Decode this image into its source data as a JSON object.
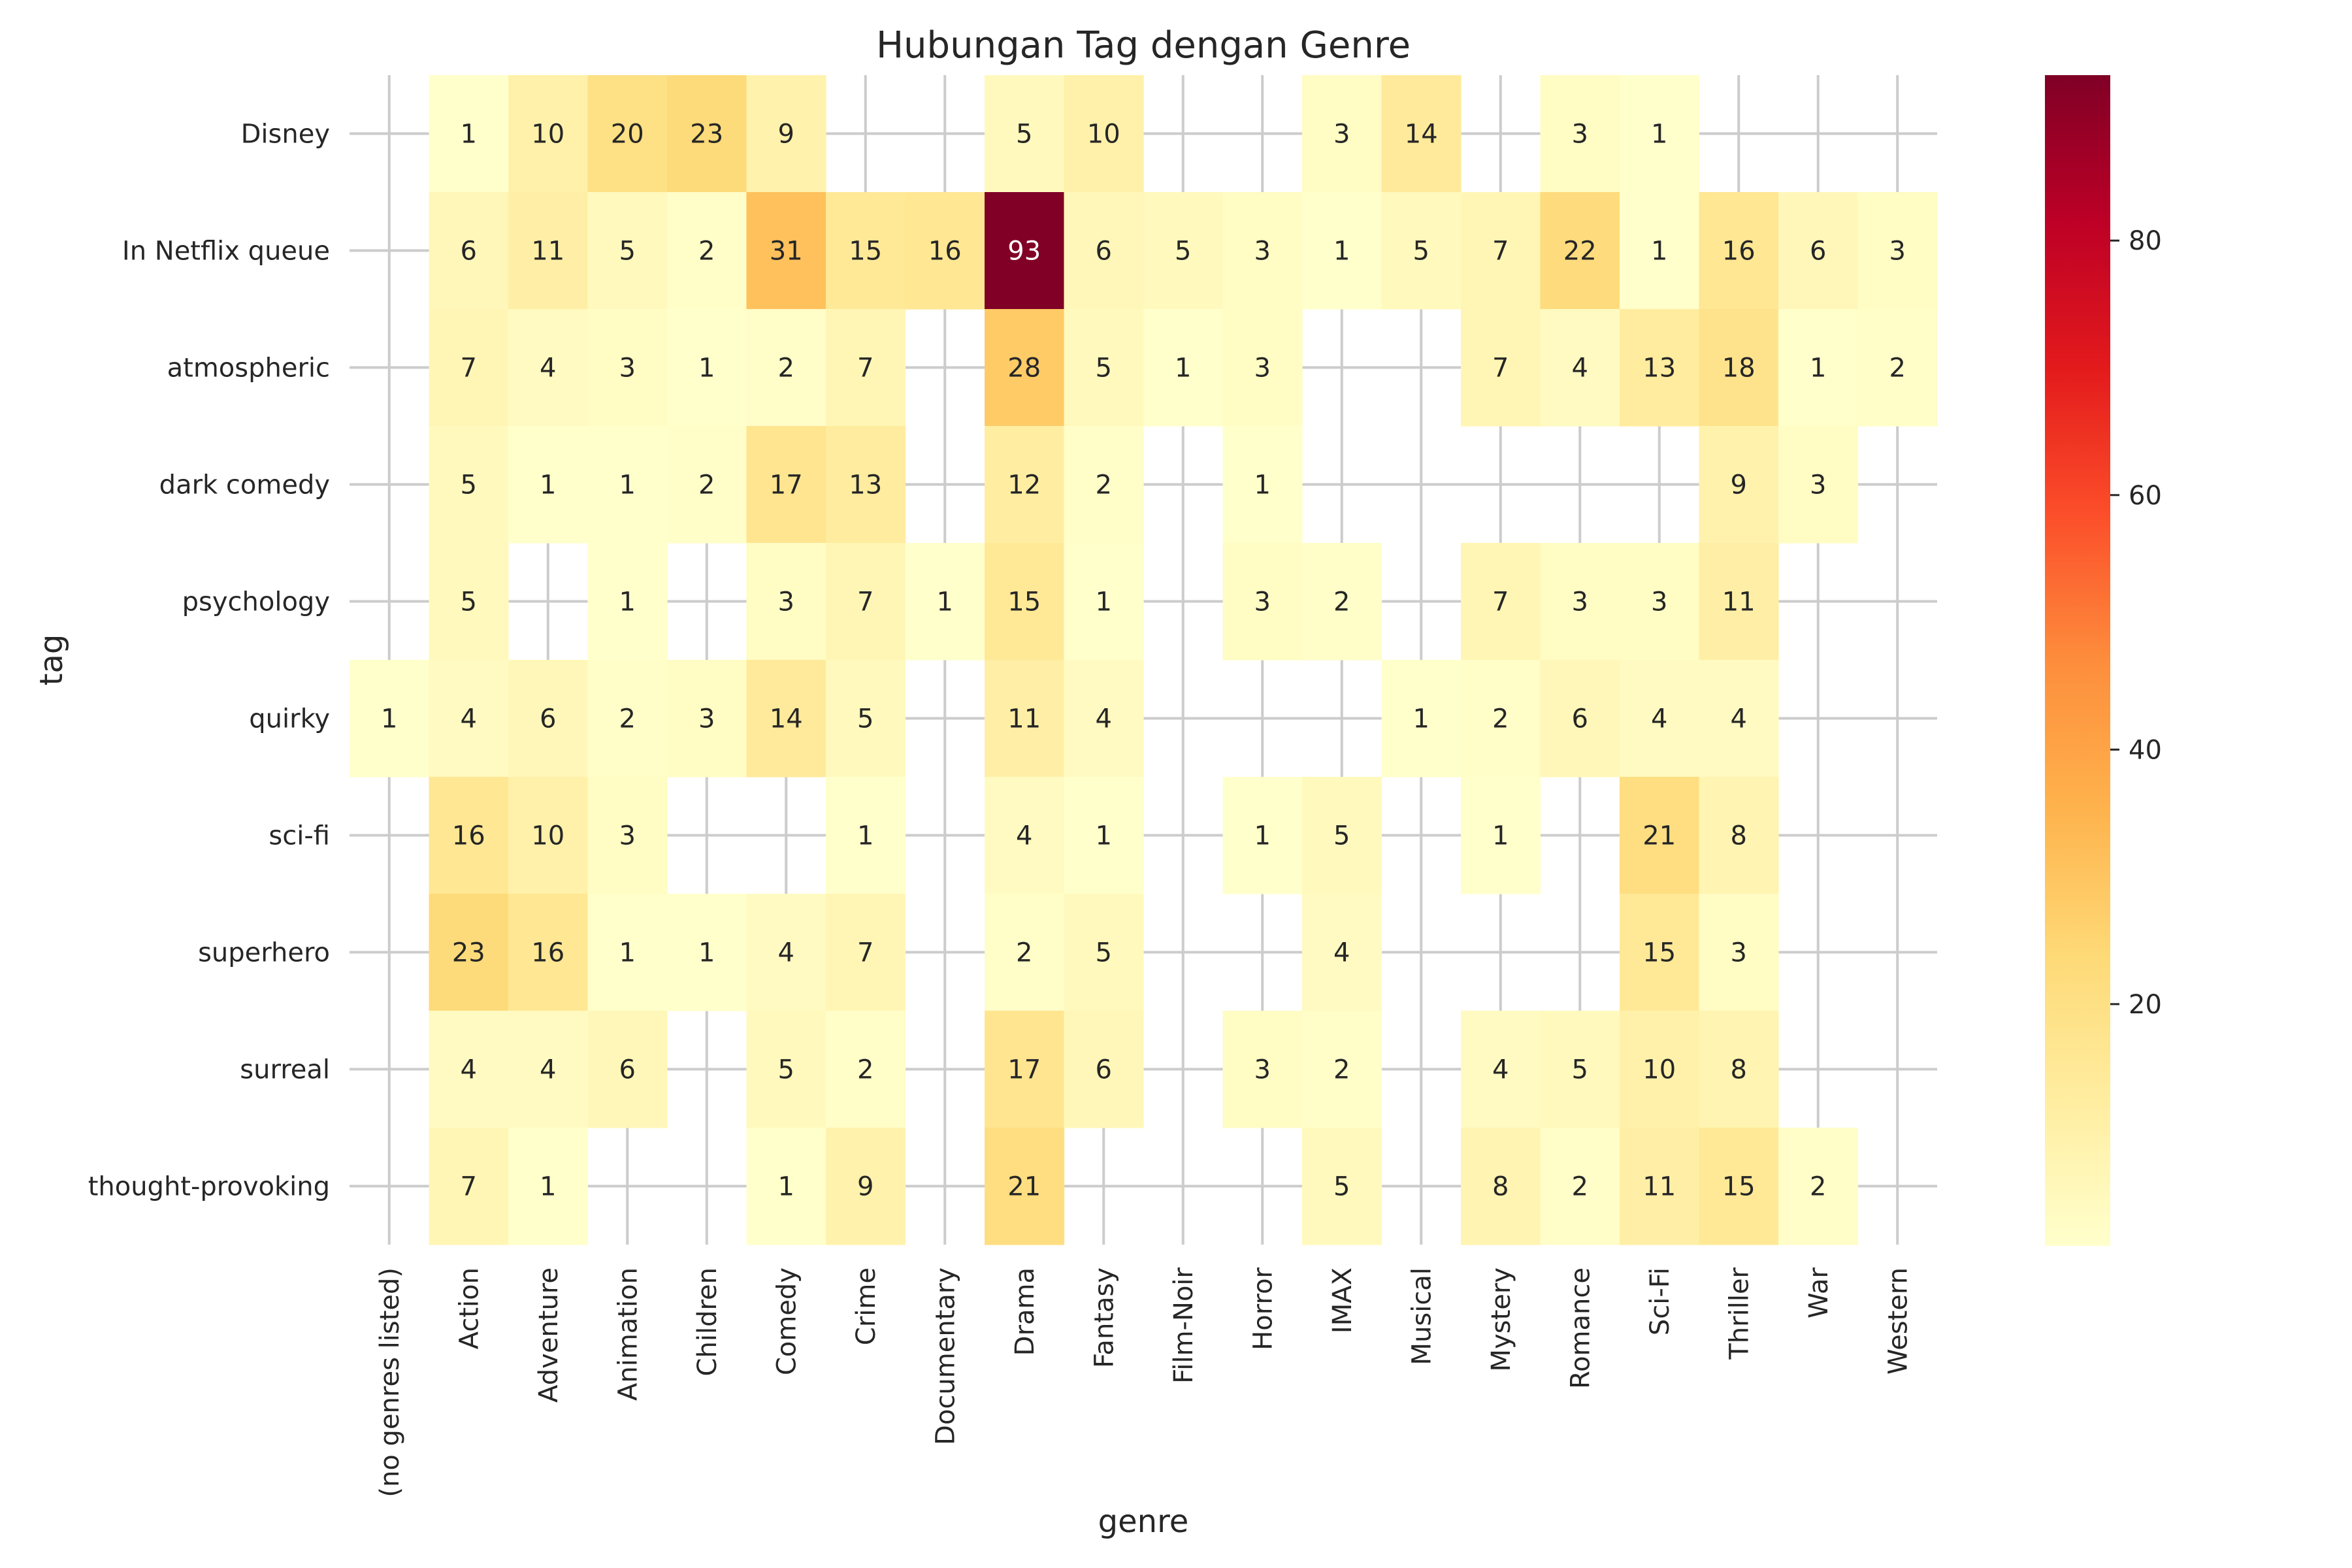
{
  "chart_data": {
    "type": "heatmap",
    "title": "Hubungan Tag dengan Genre",
    "xlabel": "genre",
    "ylabel": "tag",
    "colormap": "YlOrRd",
    "vmin": 1,
    "vmax": 93,
    "grid": true,
    "colorbar_ticks": [
      20,
      40,
      60,
      80
    ],
    "x_categories": [
      "(no genres listed)",
      "Action",
      "Adventure",
      "Animation",
      "Children",
      "Comedy",
      "Crime",
      "Documentary",
      "Drama",
      "Fantasy",
      "Film-Noir",
      "Horror",
      "IMAX",
      "Musical",
      "Mystery",
      "Romance",
      "Sci-Fi",
      "Thriller",
      "War",
      "Western"
    ],
    "y_categories": [
      "Disney",
      "In Netflix queue",
      "atmospheric",
      "dark comedy",
      "psychology",
      "quirky",
      "sci-fi",
      "superhero",
      "surreal",
      "thought-provoking"
    ],
    "values": [
      [
        null,
        1,
        10,
        20,
        23,
        9,
        null,
        null,
        5,
        10,
        null,
        null,
        3,
        14,
        null,
        3,
        1,
        null,
        null,
        null
      ],
      [
        null,
        6,
        11,
        5,
        2,
        31,
        15,
        16,
        93,
        6,
        5,
        3,
        1,
        5,
        7,
        22,
        1,
        16,
        6,
        3
      ],
      [
        null,
        7,
        4,
        3,
        1,
        2,
        7,
        null,
        28,
        5,
        1,
        3,
        null,
        null,
        7,
        4,
        13,
        18,
        1,
        2
      ],
      [
        null,
        5,
        1,
        1,
        2,
        17,
        13,
        null,
        12,
        2,
        null,
        1,
        null,
        null,
        null,
        null,
        null,
        9,
        3,
        null
      ],
      [
        null,
        5,
        null,
        1,
        null,
        3,
        7,
        1,
        15,
        1,
        null,
        3,
        2,
        null,
        7,
        3,
        3,
        11,
        null,
        null
      ],
      [
        1,
        4,
        6,
        2,
        3,
        14,
        5,
        null,
        11,
        4,
        null,
        null,
        null,
        1,
        2,
        6,
        4,
        4,
        null,
        null
      ],
      [
        null,
        16,
        10,
        3,
        null,
        null,
        1,
        null,
        4,
        1,
        null,
        1,
        5,
        null,
        1,
        null,
        21,
        8,
        null,
        null
      ],
      [
        null,
        23,
        16,
        1,
        1,
        4,
        7,
        null,
        2,
        5,
        null,
        null,
        4,
        null,
        null,
        null,
        15,
        3,
        null,
        null
      ],
      [
        null,
        4,
        4,
        6,
        null,
        5,
        2,
        null,
        17,
        6,
        null,
        3,
        2,
        null,
        4,
        5,
        10,
        8,
        null,
        null
      ],
      [
        null,
        7,
        1,
        null,
        null,
        1,
        9,
        null,
        21,
        null,
        null,
        null,
        5,
        null,
        8,
        2,
        11,
        15,
        2,
        null
      ]
    ]
  }
}
